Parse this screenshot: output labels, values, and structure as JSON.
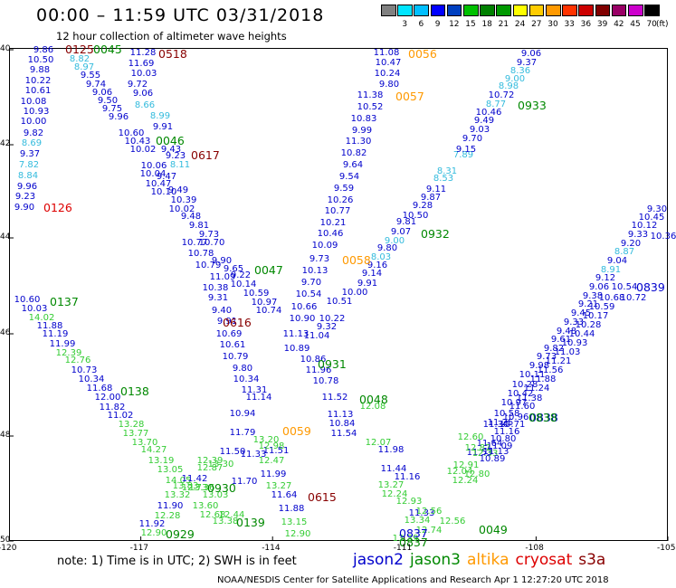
{
  "title": "00:00 – 11:59 UTC 03/31/2018",
  "subtitle": "12 hour collection of altimeter wave heights",
  "legend": {
    "unit_label": "(ft)",
    "bins": [
      {
        "label": "",
        "color": "#808080"
      },
      {
        "label": "3",
        "color": "#00e5ff"
      },
      {
        "label": "6",
        "color": "#00bfff"
      },
      {
        "label": "9",
        "color": "#0000ff"
      },
      {
        "label": "12",
        "color": "#0040c0"
      },
      {
        "label": "15",
        "color": "#00c000"
      },
      {
        "label": "18",
        "color": "#008000"
      },
      {
        "label": "21",
        "color": "#009900"
      },
      {
        "label": "24",
        "color": "#ffff00"
      },
      {
        "label": "27",
        "color": "#ffcc00"
      },
      {
        "label": "30",
        "color": "#ff9900"
      },
      {
        "label": "33",
        "color": "#ff3300"
      },
      {
        "label": "36",
        "color": "#cc0000"
      },
      {
        "label": "39",
        "color": "#800000"
      },
      {
        "label": "42",
        "color": "#990066"
      },
      {
        "label": "45",
        "color": "#cc00cc"
      },
      {
        "label": "70",
        "color": "#000000"
      }
    ]
  },
  "axes": {
    "lon_ticks": [
      "-120",
      "-117",
      "-114",
      "-111",
      "-108",
      "-105"
    ],
    "lat_ticks": [
      "40",
      "42",
      "44",
      "46",
      "48",
      "50"
    ]
  },
  "wave_colors": {
    "lightgreen": "#33cc33",
    "cyan": "#33bbdd",
    "blue": "#0000cc",
    "green": "#008800",
    "orange": "#ff9900",
    "darkred": "#880000",
    "red": "#dd0000"
  },
  "time_labels": [
    {
      "text": "0125",
      "color": "darkred"
    },
    {
      "text": "0045",
      "color": "green"
    },
    {
      "text": "0518",
      "color": "darkred"
    },
    {
      "text": "0056",
      "color": "orange"
    },
    {
      "text": "0057",
      "color": "orange"
    },
    {
      "text": "0933",
      "color": "green"
    },
    {
      "text": "0046",
      "color": "green"
    },
    {
      "text": "0617",
      "color": "darkred"
    },
    {
      "text": "0126",
      "color": "red"
    },
    {
      "text": "0932",
      "color": "green"
    },
    {
      "text": "0058",
      "color": "orange"
    },
    {
      "text": "0047",
      "color": "green"
    },
    {
      "text": "0137",
      "color": "green"
    },
    {
      "text": "0616",
      "color": "darkred"
    },
    {
      "text": "0931",
      "color": "green"
    },
    {
      "text": "0138",
      "color": "green"
    },
    {
      "text": "0048",
      "color": "green"
    },
    {
      "text": "0059",
      "color": "orange"
    },
    {
      "text": "0930",
      "color": "green"
    },
    {
      "text": "0615",
      "color": "darkred"
    },
    {
      "text": "0139",
      "color": "green"
    },
    {
      "text": "0929",
      "color": "green"
    },
    {
      "text": "0049",
      "color": "green"
    },
    {
      "text": "0837",
      "color": "blue"
    },
    {
      "text": "0837",
      "color": "green"
    },
    {
      "text": "0839",
      "color": "blue"
    },
    {
      "text": "0838",
      "color": "blue"
    },
    {
      "text": "0838",
      "color": "green"
    }
  ],
  "wave_heights": [
    {
      "v": "9.86",
      "c": "blue"
    },
    {
      "v": "10.50",
      "c": "blue"
    },
    {
      "v": "8.82",
      "c": "cyan"
    },
    {
      "v": "9.88",
      "c": "blue"
    },
    {
      "v": "8.97",
      "c": "cyan"
    },
    {
      "v": "10.22",
      "c": "blue"
    },
    {
      "v": "9.55",
      "c": "blue"
    },
    {
      "v": "9.74",
      "c": "blue"
    },
    {
      "v": "10.61",
      "c": "blue"
    },
    {
      "v": "9.06",
      "c": "blue"
    },
    {
      "v": "10.08",
      "c": "blue"
    },
    {
      "v": "9.50",
      "c": "blue"
    },
    {
      "v": "10.93",
      "c": "blue"
    },
    {
      "v": "9.75",
      "c": "blue"
    },
    {
      "v": "10.00",
      "c": "blue"
    },
    {
      "v": "9.96",
      "c": "blue"
    },
    {
      "v": "9.82",
      "c": "blue"
    },
    {
      "v": "10.60",
      "c": "blue"
    },
    {
      "v": "8.69",
      "c": "cyan"
    },
    {
      "v": "9.37",
      "c": "blue"
    },
    {
      "v": "7.82",
      "c": "cyan"
    },
    {
      "v": "8.84",
      "c": "cyan"
    },
    {
      "v": "9.96",
      "c": "blue"
    },
    {
      "v": "9.23",
      "c": "blue"
    },
    {
      "v": "9.90",
      "c": "blue"
    },
    {
      "v": "11.28",
      "c": "blue"
    },
    {
      "v": "11.69",
      "c": "blue"
    },
    {
      "v": "10.03",
      "c": "blue"
    },
    {
      "v": "9.72",
      "c": "blue"
    },
    {
      "v": "9.06",
      "c": "blue"
    },
    {
      "v": "8.66",
      "c": "cyan"
    },
    {
      "v": "8.99",
      "c": "cyan"
    },
    {
      "v": "9.91",
      "c": "blue"
    },
    {
      "v": "10.43",
      "c": "blue"
    },
    {
      "v": "10.02",
      "c": "blue"
    },
    {
      "v": "9.43",
      "c": "blue"
    },
    {
      "v": "9.23",
      "c": "blue"
    },
    {
      "v": "10.06",
      "c": "blue"
    },
    {
      "v": "8.11",
      "c": "cyan"
    },
    {
      "v": "10.04",
      "c": "blue"
    },
    {
      "v": "9.47",
      "c": "blue"
    },
    {
      "v": "10.47",
      "c": "blue"
    },
    {
      "v": "9.49",
      "c": "blue"
    },
    {
      "v": "10.10",
      "c": "blue"
    },
    {
      "v": "10.39",
      "c": "blue"
    },
    {
      "v": "10.02",
      "c": "blue"
    },
    {
      "v": "9.48",
      "c": "blue"
    },
    {
      "v": "9.81",
      "c": "blue"
    },
    {
      "v": "9.73",
      "c": "blue"
    },
    {
      "v": "10.77",
      "c": "blue"
    },
    {
      "v": "10.70",
      "c": "blue"
    },
    {
      "v": "10.78",
      "c": "blue"
    },
    {
      "v": "9.90",
      "c": "blue"
    },
    {
      "v": "10.79",
      "c": "blue"
    },
    {
      "v": "9.65",
      "c": "blue"
    },
    {
      "v": "11.09",
      "c": "blue"
    },
    {
      "v": "9.22",
      "c": "blue"
    },
    {
      "v": "10.38",
      "c": "blue"
    },
    {
      "v": "10.14",
      "c": "blue"
    },
    {
      "v": "9.31",
      "c": "blue"
    },
    {
      "v": "10.59",
      "c": "blue"
    },
    {
      "v": "10.97",
      "c": "blue"
    },
    {
      "v": "9.40",
      "c": "blue"
    },
    {
      "v": "10.74",
      "c": "blue"
    },
    {
      "v": "9.91",
      "c": "blue"
    },
    {
      "v": "10.69",
      "c": "blue"
    },
    {
      "v": "10.61",
      "c": "blue"
    },
    {
      "v": "10.79",
      "c": "blue"
    },
    {
      "v": "9.80",
      "c": "blue"
    },
    {
      "v": "10.34",
      "c": "blue"
    },
    {
      "v": "11.31",
      "c": "blue"
    },
    {
      "v": "11.14",
      "c": "blue"
    },
    {
      "v": "10.94",
      "c": "blue"
    },
    {
      "v": "11.79",
      "c": "blue"
    },
    {
      "v": "11.50",
      "c": "blue"
    },
    {
      "v": "11.70",
      "c": "blue"
    },
    {
      "v": "11.08",
      "c": "blue"
    },
    {
      "v": "10.47",
      "c": "blue"
    },
    {
      "v": "10.24",
      "c": "blue"
    },
    {
      "v": "9.80",
      "c": "blue"
    },
    {
      "v": "11.38",
      "c": "blue"
    },
    {
      "v": "10.52",
      "c": "blue"
    },
    {
      "v": "10.83",
      "c": "blue"
    },
    {
      "v": "9.99",
      "c": "blue"
    },
    {
      "v": "11.30",
      "c": "blue"
    },
    {
      "v": "10.82",
      "c": "blue"
    },
    {
      "v": "9.64",
      "c": "blue"
    },
    {
      "v": "9.54",
      "c": "blue"
    },
    {
      "v": "9.59",
      "c": "blue"
    },
    {
      "v": "10.26",
      "c": "blue"
    },
    {
      "v": "10.77",
      "c": "blue"
    },
    {
      "v": "10.21",
      "c": "blue"
    },
    {
      "v": "10.46",
      "c": "blue"
    },
    {
      "v": "10.09",
      "c": "blue"
    },
    {
      "v": "9.73",
      "c": "blue"
    },
    {
      "v": "10.13",
      "c": "blue"
    },
    {
      "v": "9.70",
      "c": "blue"
    },
    {
      "v": "10.54",
      "c": "blue"
    },
    {
      "v": "10.66",
      "c": "blue"
    },
    {
      "v": "10.90",
      "c": "blue"
    },
    {
      "v": "11.13",
      "c": "blue"
    },
    {
      "v": "11.04",
      "c": "blue"
    },
    {
      "v": "10.89",
      "c": "blue"
    },
    {
      "v": "10.86",
      "c": "blue"
    },
    {
      "v": "11.96",
      "c": "blue"
    },
    {
      "v": "10.78",
      "c": "blue"
    },
    {
      "v": "11.52",
      "c": "blue"
    },
    {
      "v": "11.13",
      "c": "blue"
    },
    {
      "v": "10.84",
      "c": "blue"
    },
    {
      "v": "11.54",
      "c": "blue"
    },
    {
      "v": "11.98",
      "c": "blue"
    },
    {
      "v": "11.44",
      "c": "blue"
    },
    {
      "v": "11.16",
      "c": "blue"
    },
    {
      "v": "11.33",
      "c": "blue"
    },
    {
      "v": "9.06",
      "c": "blue"
    },
    {
      "v": "9.37",
      "c": "blue"
    },
    {
      "v": "8.36",
      "c": "cyan"
    },
    {
      "v": "9.00",
      "c": "cyan"
    },
    {
      "v": "8.98",
      "c": "cyan"
    },
    {
      "v": "10.72",
      "c": "blue"
    },
    {
      "v": "8.77",
      "c": "cyan"
    },
    {
      "v": "10.46",
      "c": "blue"
    },
    {
      "v": "9.49",
      "c": "blue"
    },
    {
      "v": "9.03",
      "c": "blue"
    },
    {
      "v": "9.70",
      "c": "blue"
    },
    {
      "v": "7.89",
      "c": "cyan"
    },
    {
      "v": "9.15",
      "c": "blue"
    },
    {
      "v": "8.31",
      "c": "cyan"
    },
    {
      "v": "8.53",
      "c": "cyan"
    },
    {
      "v": "9.11",
      "c": "blue"
    },
    {
      "v": "9.87",
      "c": "blue"
    },
    {
      "v": "9.28",
      "c": "blue"
    },
    {
      "v": "10.50",
      "c": "blue"
    },
    {
      "v": "9.81",
      "c": "blue"
    },
    {
      "v": "9.07",
      "c": "blue"
    },
    {
      "v": "9.00",
      "c": "cyan"
    },
    {
      "v": "9.80",
      "c": "blue"
    },
    {
      "v": "8.03",
      "c": "cyan"
    },
    {
      "v": "9.16",
      "c": "blue"
    },
    {
      "v": "9.14",
      "c": "blue"
    },
    {
      "v": "9.91",
      "c": "blue"
    },
    {
      "v": "10.00",
      "c": "blue"
    },
    {
      "v": "10.51",
      "c": "blue"
    },
    {
      "v": "10.22",
      "c": "blue"
    },
    {
      "v": "9.32",
      "c": "blue"
    },
    {
      "v": "10.60",
      "c": "blue"
    },
    {
      "v": "10.03",
      "c": "blue"
    },
    {
      "v": "14.02",
      "c": "lightgreen"
    },
    {
      "v": "11.88",
      "c": "blue"
    },
    {
      "v": "11.19",
      "c": "blue"
    },
    {
      "v": "11.99",
      "c": "blue"
    },
    {
      "v": "12.39",
      "c": "lightgreen"
    },
    {
      "v": "12.76",
      "c": "lightgreen"
    },
    {
      "v": "10.73",
      "c": "blue"
    },
    {
      "v": "10.34",
      "c": "blue"
    },
    {
      "v": "11.68",
      "c": "blue"
    },
    {
      "v": "12.00",
      "c": "blue"
    },
    {
      "v": "11.82",
      "c": "blue"
    },
    {
      "v": "11.02",
      "c": "blue"
    },
    {
      "v": "13.28",
      "c": "lightgreen"
    },
    {
      "v": "13.77",
      "c": "lightgreen"
    },
    {
      "v": "13.70",
      "c": "lightgreen"
    },
    {
      "v": "14.27",
      "c": "lightgreen"
    },
    {
      "v": "13.19",
      "c": "lightgreen"
    },
    {
      "v": "13.05",
      "c": "lightgreen"
    },
    {
      "v": "14.05",
      "c": "lightgreen"
    },
    {
      "v": "13.83",
      "c": "lightgreen"
    },
    {
      "v": "12.73",
      "c": "lightgreen"
    },
    {
      "v": "11.90",
      "c": "blue"
    },
    {
      "v": "12.28",
      "c": "lightgreen"
    },
    {
      "v": "11.92",
      "c": "blue"
    },
    {
      "v": "12.90",
      "c": "lightgreen"
    },
    {
      "v": "11.42",
      "c": "blue"
    },
    {
      "v": "13.36",
      "c": "lightgreen"
    },
    {
      "v": "13.32",
      "c": "lightgreen"
    },
    {
      "v": "12.87",
      "c": "lightgreen"
    },
    {
      "v": "12.39",
      "c": "lightgreen"
    },
    {
      "v": "13.30",
      "c": "lightgreen"
    },
    {
      "v": "13.60",
      "c": "lightgreen"
    },
    {
      "v": "12.68",
      "c": "lightgreen"
    },
    {
      "v": "12.44",
      "c": "lightgreen"
    },
    {
      "v": "13.38",
      "c": "lightgreen"
    },
    {
      "v": "13.03",
      "c": "lightgreen"
    },
    {
      "v": "11.33",
      "c": "blue"
    },
    {
      "v": "12.47",
      "c": "lightgreen"
    },
    {
      "v": "11.99",
      "c": "blue"
    },
    {
      "v": "13.27",
      "c": "lightgreen"
    },
    {
      "v": "11.64",
      "c": "blue"
    },
    {
      "v": "11.88",
      "c": "blue"
    },
    {
      "v": "13.15",
      "c": "lightgreen"
    },
    {
      "v": "12.90",
      "c": "lightgreen"
    },
    {
      "v": "11.51",
      "c": "blue"
    },
    {
      "v": "12.98",
      "c": "lightgreen"
    },
    {
      "v": "13.20",
      "c": "lightgreen"
    },
    {
      "v": "13.27",
      "c": "lightgreen"
    },
    {
      "v": "12.24",
      "c": "lightgreen"
    },
    {
      "v": "12.93",
      "c": "lightgreen"
    },
    {
      "v": "12.56",
      "c": "lightgreen"
    },
    {
      "v": "13.34",
      "c": "lightgreen"
    },
    {
      "v": "12.74",
      "c": "lightgreen"
    },
    {
      "v": "12.56",
      "c": "lightgreen"
    },
    {
      "v": "13.39",
      "c": "lightgreen"
    },
    {
      "v": "12.08",
      "c": "lightgreen"
    },
    {
      "v": "12.07",
      "c": "lightgreen"
    },
    {
      "v": "11.53",
      "c": "blue"
    },
    {
      "v": "11.30",
      "c": "blue"
    },
    {
      "v": "11.64",
      "c": "blue"
    },
    {
      "v": "12.60",
      "c": "lightgreen"
    },
    {
      "v": "12.87",
      "c": "lightgreen"
    },
    {
      "v": "12.33",
      "c": "lightgreen"
    },
    {
      "v": "12.91",
      "c": "lightgreen"
    },
    {
      "v": "12.80",
      "c": "lightgreen"
    },
    {
      "v": "12.04",
      "c": "lightgreen"
    },
    {
      "v": "12.24",
      "c": "lightgreen"
    },
    {
      "v": "11.25",
      "c": "blue"
    },
    {
      "v": "10.97",
      "c": "blue"
    },
    {
      "v": "10.58",
      "c": "blue"
    },
    {
      "v": "10.42",
      "c": "blue"
    },
    {
      "v": "10.28",
      "c": "blue"
    },
    {
      "v": "10.11",
      "c": "blue"
    },
    {
      "v": "9.98",
      "c": "blue"
    },
    {
      "v": "9.73",
      "c": "blue"
    },
    {
      "v": "9.82",
      "c": "blue"
    },
    {
      "v": "9.61",
      "c": "blue"
    },
    {
      "v": "9.48",
      "c": "blue"
    },
    {
      "v": "9.33",
      "c": "blue"
    },
    {
      "v": "9.45",
      "c": "blue"
    },
    {
      "v": "9.21",
      "c": "blue"
    },
    {
      "v": "9.38",
      "c": "blue"
    },
    {
      "v": "9.06",
      "c": "blue"
    },
    {
      "v": "9.12",
      "c": "blue"
    },
    {
      "v": "8.91",
      "c": "cyan"
    },
    {
      "v": "9.04",
      "c": "blue"
    },
    {
      "v": "8.87",
      "c": "cyan"
    },
    {
      "v": "9.20",
      "c": "blue"
    },
    {
      "v": "9.33",
      "c": "blue"
    },
    {
      "v": "10.12",
      "c": "blue"
    },
    {
      "v": "10.45",
      "c": "blue"
    },
    {
      "v": "9.30",
      "c": "blue"
    },
    {
      "v": "10.36",
      "c": "blue"
    },
    {
      "v": "10.54",
      "c": "blue"
    },
    {
      "v": "10.72",
      "c": "blue"
    },
    {
      "v": "10.68",
      "c": "blue"
    },
    {
      "v": "10.59",
      "c": "blue"
    },
    {
      "v": "10.17",
      "c": "blue"
    },
    {
      "v": "10.28",
      "c": "blue"
    },
    {
      "v": "10.44",
      "c": "blue"
    },
    {
      "v": "10.93",
      "c": "blue"
    },
    {
      "v": "11.03",
      "c": "blue"
    },
    {
      "v": "11.21",
      "c": "blue"
    },
    {
      "v": "11.56",
      "c": "blue"
    },
    {
      "v": "11.88",
      "c": "blue"
    },
    {
      "v": "11.24",
      "c": "blue"
    },
    {
      "v": "11.38",
      "c": "blue"
    },
    {
      "v": "11.60",
      "c": "blue"
    },
    {
      "v": "10.96",
      "c": "blue"
    },
    {
      "v": "10.71",
      "c": "blue"
    },
    {
      "v": "11.16",
      "c": "blue"
    },
    {
      "v": "10.80",
      "c": "blue"
    },
    {
      "v": "11.09",
      "c": "blue"
    },
    {
      "v": "11.13",
      "c": "blue"
    },
    {
      "v": "10.89",
      "c": "blue"
    }
  ],
  "footnote": "note: 1) Time is in UTC; 2) SWH is in feet",
  "satellites": [
    {
      "name": "jason2",
      "color": "#0000cc"
    },
    {
      "name": "jason3",
      "color": "#008800"
    },
    {
      "name": "altika",
      "color": "#ff9900"
    },
    {
      "name": "cryosat",
      "color": "#dd0000"
    },
    {
      "name": "s3a",
      "color": "#880000"
    }
  ],
  "credit": "NOAA/NESDIS Center for Satellite Applications and Research   Apr  1 12:27:20 UTC 2018"
}
